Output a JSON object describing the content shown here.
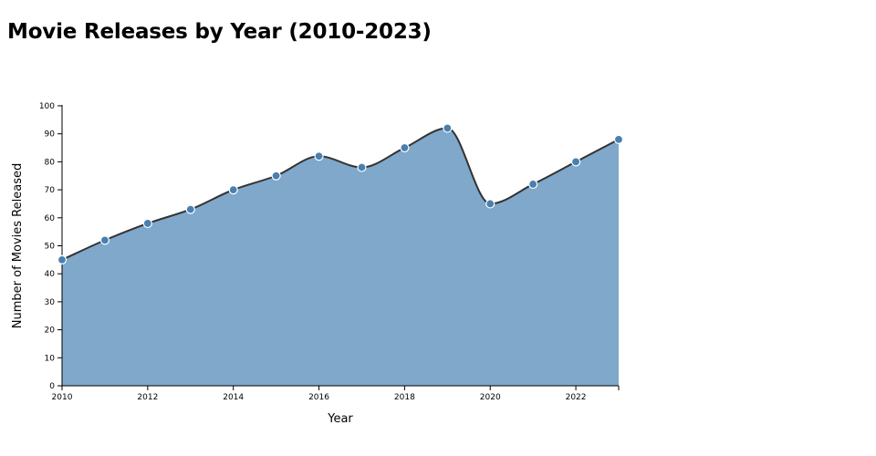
{
  "chart_data": {
    "type": "area",
    "title": "Movie Releases by Year (2010-2023)",
    "xlabel": "Year",
    "ylabel": "Number of Movies Released",
    "x": [
      2010,
      2011,
      2012,
      2013,
      2014,
      2015,
      2016,
      2017,
      2018,
      2019,
      2020,
      2021,
      2022,
      2023
    ],
    "series": [
      {
        "values": [
          45,
          52,
          58,
          63,
          70,
          75,
          82,
          78,
          85,
          92,
          65,
          72,
          80,
          88
        ]
      }
    ],
    "xlim": [
      2010,
      2023
    ],
    "ylim": [
      0,
      100
    ],
    "x_ticks": [
      2010,
      2012,
      2014,
      2016,
      2018,
      2020,
      2022
    ],
    "y_ticks": [
      0,
      10,
      20,
      30,
      40,
      50,
      60,
      70,
      80,
      90,
      100
    ],
    "grid": false,
    "legend": "none",
    "colors": {
      "area": "#7fa8cb",
      "line": "#333333",
      "marker": "#4a7fb0",
      "marker_stroke": "#ffffff"
    }
  }
}
